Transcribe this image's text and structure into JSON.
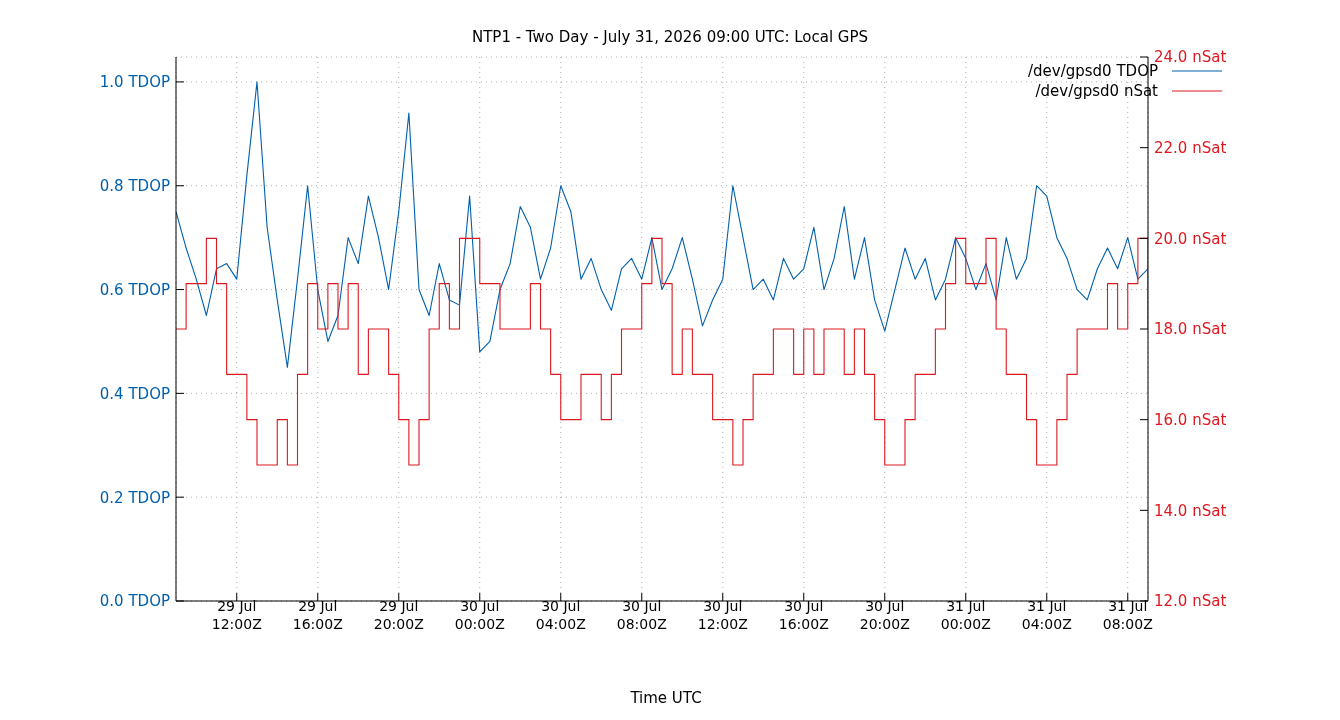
{
  "chart_data": {
    "type": "line",
    "title": "NTP1 - Two Day - July 31, 2026 09:00 UTC: Local GPS",
    "xlabel": "Time UTC",
    "x": [
      "2026-07-29T09:00",
      "2026-07-29T09:30",
      "2026-07-29T10:00",
      "2026-07-29T10:30",
      "2026-07-29T11:00",
      "2026-07-29T11:30",
      "2026-07-29T12:00",
      "2026-07-29T12:30",
      "2026-07-29T13:00",
      "2026-07-29T13:30",
      "2026-07-29T14:00",
      "2026-07-29T14:30",
      "2026-07-29T15:00",
      "2026-07-29T15:30",
      "2026-07-29T16:00",
      "2026-07-29T16:30",
      "2026-07-29T17:00",
      "2026-07-29T17:30",
      "2026-07-29T18:00",
      "2026-07-29T18:30",
      "2026-07-29T19:00",
      "2026-07-29T19:30",
      "2026-07-29T20:00",
      "2026-07-29T20:30",
      "2026-07-29T21:00",
      "2026-07-29T21:30",
      "2026-07-29T22:00",
      "2026-07-29T22:30",
      "2026-07-29T23:00",
      "2026-07-29T23:30",
      "2026-07-30T00:00",
      "2026-07-30T00:30",
      "2026-07-30T01:00",
      "2026-07-30T01:30",
      "2026-07-30T02:00",
      "2026-07-30T02:30",
      "2026-07-30T03:00",
      "2026-07-30T03:30",
      "2026-07-30T04:00",
      "2026-07-30T04:30",
      "2026-07-30T05:00",
      "2026-07-30T05:30",
      "2026-07-30T06:00",
      "2026-07-30T06:30",
      "2026-07-30T07:00",
      "2026-07-30T07:30",
      "2026-07-30T08:00",
      "2026-07-30T08:30",
      "2026-07-30T09:00",
      "2026-07-30T09:30",
      "2026-07-30T10:00",
      "2026-07-30T10:30",
      "2026-07-30T11:00",
      "2026-07-30T11:30",
      "2026-07-30T12:00",
      "2026-07-30T12:30",
      "2026-07-30T13:00",
      "2026-07-30T13:30",
      "2026-07-30T14:00",
      "2026-07-30T14:30",
      "2026-07-30T15:00",
      "2026-07-30T15:30",
      "2026-07-30T16:00",
      "2026-07-30T16:30",
      "2026-07-30T17:00",
      "2026-07-30T17:30",
      "2026-07-30T18:00",
      "2026-07-30T18:30",
      "2026-07-30T19:00",
      "2026-07-30T19:30",
      "2026-07-30T20:00",
      "2026-07-30T20:30",
      "2026-07-30T21:00",
      "2026-07-30T21:30",
      "2026-07-30T22:00",
      "2026-07-30T22:30",
      "2026-07-30T23:00",
      "2026-07-30T23:30",
      "2026-07-31T00:00",
      "2026-07-31T00:30",
      "2026-07-31T01:00",
      "2026-07-31T01:30",
      "2026-07-31T02:00",
      "2026-07-31T02:30",
      "2026-07-31T03:00",
      "2026-07-31T03:30",
      "2026-07-31T04:00",
      "2026-07-31T04:30",
      "2026-07-31T05:00",
      "2026-07-31T05:30",
      "2026-07-31T06:00",
      "2026-07-31T06:30",
      "2026-07-31T07:00",
      "2026-07-31T07:30",
      "2026-07-31T08:00",
      "2026-07-31T08:30",
      "2026-07-31T09:00"
    ],
    "series": [
      {
        "name": "/dev/gpsd0 TDOP",
        "color": "#0060ad",
        "values": [
          0.75,
          0.68,
          0.62,
          0.55,
          0.64,
          0.65,
          0.62,
          0.82,
          1.0,
          0.72,
          0.58,
          0.45,
          0.62,
          0.8,
          0.6,
          0.5,
          0.55,
          0.7,
          0.65,
          0.78,
          0.7,
          0.6,
          0.75,
          0.94,
          0.6,
          0.55,
          0.65,
          0.58,
          0.57,
          0.78,
          0.48,
          0.5,
          0.6,
          0.65,
          0.76,
          0.72,
          0.62,
          0.68,
          0.8,
          0.75,
          0.62,
          0.66,
          0.6,
          0.56,
          0.64,
          0.66,
          0.62,
          0.7,
          0.6,
          0.64,
          0.7,
          0.62,
          0.53,
          0.58,
          0.62,
          0.8,
          0.7,
          0.6,
          0.62,
          0.58,
          0.66,
          0.62,
          0.64,
          0.72,
          0.6,
          0.66,
          0.76,
          0.62,
          0.7,
          0.58,
          0.52,
          0.6,
          0.68,
          0.62,
          0.66,
          0.58,
          0.62,
          0.7,
          0.66,
          0.6,
          0.65,
          0.58,
          0.7,
          0.62,
          0.66,
          0.8,
          0.78,
          0.7,
          0.66,
          0.6,
          0.58,
          0.64,
          0.68,
          0.64,
          0.7,
          0.62,
          0.64
        ]
      },
      {
        "name": "/dev/gpsd0 nSat",
        "color": "#dd181f",
        "type": "step",
        "axis": "y2",
        "values": [
          18,
          19,
          19,
          20,
          19,
          17,
          17,
          16,
          15,
          15,
          16,
          15,
          17,
          19,
          18,
          19,
          18,
          19,
          17,
          18,
          18,
          17,
          16,
          15,
          16,
          18,
          19,
          18,
          20,
          20,
          19,
          19,
          18,
          18,
          18,
          19,
          18,
          17,
          16,
          16,
          17,
          17,
          16,
          17,
          18,
          18,
          19,
          20,
          19,
          17,
          18,
          17,
          17,
          16,
          16,
          15,
          16,
          17,
          17,
          18,
          18,
          17,
          18,
          17,
          18,
          18,
          17,
          18,
          17,
          16,
          15,
          15,
          16,
          17,
          17,
          18,
          19,
          20,
          19,
          19,
          20,
          18,
          17,
          17,
          16,
          15,
          15,
          16,
          17,
          18,
          18,
          18,
          19,
          18,
          19,
          20,
          18
        ]
      }
    ],
    "xlim": [
      "2026-07-29T09:00",
      "2026-07-31T09:00"
    ],
    "xticks": [
      {
        "value": "2026-07-29T12:00",
        "label": "29 Jul\n12:00Z"
      },
      {
        "value": "2026-07-29T16:00",
        "label": "29 Jul\n16:00Z"
      },
      {
        "value": "2026-07-29T20:00",
        "label": "29 Jul\n20:00Z"
      },
      {
        "value": "2026-07-30T00:00",
        "label": "30 Jul\n00:00Z"
      },
      {
        "value": "2026-07-30T04:00",
        "label": "30 Jul\n04:00Z"
      },
      {
        "value": "2026-07-30T08:00",
        "label": "30 Jul\n08:00Z"
      },
      {
        "value": "2026-07-30T12:00",
        "label": "30 Jul\n12:00Z"
      },
      {
        "value": "2026-07-30T16:00",
        "label": "30 Jul\n16:00Z"
      },
      {
        "value": "2026-07-30T20:00",
        "label": "30 Jul\n20:00Z"
      },
      {
        "value": "2026-07-31T00:00",
        "label": "31 Jul\n00:00Z"
      },
      {
        "value": "2026-07-31T04:00",
        "label": "31 Jul\n04:00Z"
      },
      {
        "value": "2026-07-31T08:00",
        "label": "31 Jul\n08:00Z"
      }
    ],
    "ylim": [
      0,
      1.048
    ],
    "yticks": [
      {
        "value": 0,
        "label": "0.0 TDOP"
      },
      {
        "value": 0.2,
        "label": "0.2 TDOP"
      },
      {
        "value": 0.4,
        "label": "0.4 TDOP"
      },
      {
        "value": 0.6,
        "label": "0.6 TDOP"
      },
      {
        "value": 0.8,
        "label": "0.8 TDOP"
      },
      {
        "value": 1.0,
        "label": "1.0 TDOP"
      }
    ],
    "y2lim": [
      12,
      24
    ],
    "y2ticks": [
      {
        "value": 12,
        "label": "12.0 nSat"
      },
      {
        "value": 14,
        "label": "14.0 nSat"
      },
      {
        "value": 16,
        "label": "16.0 nSat"
      },
      {
        "value": 18,
        "label": "18.0 nSat"
      },
      {
        "value": 20,
        "label": "20.0 nSat"
      },
      {
        "value": 22,
        "label": "22.0 nSat"
      },
      {
        "value": 24,
        "label": "24.0 nSat"
      }
    ],
    "grid": true,
    "legend": "top right",
    "marker": "none",
    "line_style": "solid"
  }
}
